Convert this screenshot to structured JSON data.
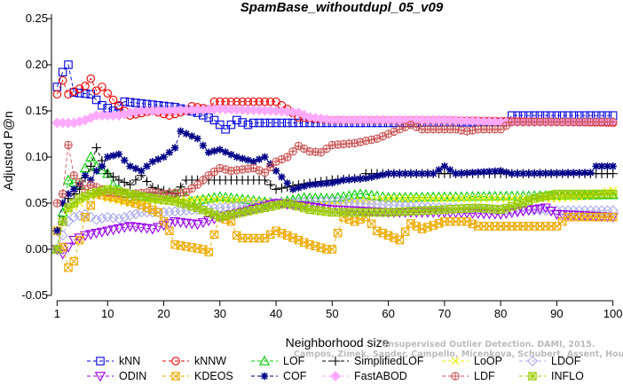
{
  "chart_data": {
    "type": "line",
    "title": "SpamBase_withoutdupl_05_v09",
    "xlabel": "Neighborhood size",
    "ylabel": "Adjusted P@n",
    "xlim": [
      0,
      101
    ],
    "ylim": [
      -0.05,
      0.25
    ],
    "x_ticks": [
      1,
      10,
      20,
      30,
      40,
      50,
      60,
      70,
      80,
      90,
      100
    ],
    "y_ticks": [
      -0.05,
      0.0,
      0.05,
      0.1,
      0.15,
      0.2,
      0.25
    ],
    "y_tick_labels": [
      "-0.05",
      "0.00",
      "0.05",
      "0.10",
      "0.15",
      "0.20",
      "0.25"
    ],
    "grid": false,
    "legend_position": "bottom",
    "watermark": "Campos, Zimek, Sander, Campello, Micenkova, Schubert, Assent, Houle",
    "watermark_overlay": "Unsupervised Outlier Detection. DAMI, 2015.",
    "series": [
      {
        "name": "kNN",
        "color": "#0000dd",
        "marker": "square",
        "dash": "4,3",
        "knots": [
          [
            1,
            0.176
          ],
          [
            2,
            0.192
          ],
          [
            3,
            0.2
          ],
          [
            4,
            0.17
          ],
          [
            7,
            0.168
          ],
          [
            9,
            0.156
          ],
          [
            11,
            0.15
          ],
          [
            13,
            0.16
          ],
          [
            22,
            0.154
          ],
          [
            26,
            0.148
          ],
          [
            29,
            0.14
          ],
          [
            31,
            0.13
          ],
          [
            33,
            0.14
          ],
          [
            35,
            0.135
          ],
          [
            36,
            0.137
          ],
          [
            60,
            0.137
          ],
          [
            81,
            0.138
          ],
          [
            82,
            0.145
          ],
          [
            100,
            0.145
          ]
        ]
      },
      {
        "name": "kNNW",
        "color": "#ee0000",
        "marker": "circle",
        "dash": "4,3",
        "knots": [
          [
            1,
            0.168
          ],
          [
            2,
            0.183
          ],
          [
            3,
            0.168
          ],
          [
            6,
            0.177
          ],
          [
            7,
            0.185
          ],
          [
            8,
            0.172
          ],
          [
            9,
            0.176
          ],
          [
            11,
            0.162
          ],
          [
            13,
            0.15
          ],
          [
            14,
            0.145
          ],
          [
            18,
            0.15
          ],
          [
            21,
            0.145
          ],
          [
            24,
            0.15
          ],
          [
            25,
            0.155
          ],
          [
            28,
            0.152
          ],
          [
            29,
            0.16
          ],
          [
            40,
            0.16
          ],
          [
            42,
            0.152
          ],
          [
            44,
            0.143
          ],
          [
            50,
            0.14
          ],
          [
            70,
            0.14
          ],
          [
            100,
            0.137
          ]
        ]
      },
      {
        "name": "LOF",
        "color": "#00cc00",
        "marker": "triangle-up",
        "dash": "4,3",
        "knots": [
          [
            1,
            0.0
          ],
          [
            2,
            0.04
          ],
          [
            3,
            0.075
          ],
          [
            5,
            0.07
          ],
          [
            6,
            0.088
          ],
          [
            7,
            0.1
          ],
          [
            8,
            0.09
          ],
          [
            10,
            0.082
          ],
          [
            11,
            0.07
          ],
          [
            13,
            0.06
          ],
          [
            14,
            0.057
          ],
          [
            20,
            0.058
          ],
          [
            23,
            0.062
          ],
          [
            25,
            0.052
          ],
          [
            30,
            0.057
          ],
          [
            40,
            0.05
          ],
          [
            45,
            0.056
          ],
          [
            50,
            0.055
          ],
          [
            55,
            0.06
          ],
          [
            60,
            0.056
          ],
          [
            100,
            0.059
          ]
        ]
      },
      {
        "name": "SimplifiedLOF",
        "color": "#000000",
        "marker": "plus",
        "dash": "4,3",
        "knots": [
          [
            1,
            0.02
          ],
          [
            2,
            0.03
          ],
          [
            3,
            0.055
          ],
          [
            5,
            0.065
          ],
          [
            7,
            0.09
          ],
          [
            8,
            0.11
          ],
          [
            10,
            0.082
          ],
          [
            12,
            0.075
          ],
          [
            14,
            0.07
          ],
          [
            16,
            0.08
          ],
          [
            18,
            0.067
          ],
          [
            22,
            0.06
          ],
          [
            24,
            0.075
          ],
          [
            38,
            0.075
          ],
          [
            40,
            0.065
          ],
          [
            44,
            0.07
          ],
          [
            50,
            0.075
          ],
          [
            55,
            0.077
          ],
          [
            56,
            0.082
          ],
          [
            100,
            0.082
          ]
        ]
      },
      {
        "name": "LoOP",
        "color": "#eeee00",
        "marker": "x",
        "dash": "4,3",
        "knots": [
          [
            1,
            0.0
          ],
          [
            2,
            0.03
          ],
          [
            3,
            0.042
          ],
          [
            5,
            0.05
          ],
          [
            8,
            0.062
          ],
          [
            10,
            0.055
          ],
          [
            14,
            0.05
          ],
          [
            20,
            0.053
          ],
          [
            30,
            0.054
          ],
          [
            40,
            0.05
          ],
          [
            50,
            0.05
          ],
          [
            60,
            0.055
          ],
          [
            70,
            0.055
          ],
          [
            90,
            0.055
          ],
          [
            96,
            0.058
          ],
          [
            100,
            0.064
          ]
        ]
      },
      {
        "name": "LDOF",
        "color": "#aaaaee",
        "marker": "diamond",
        "dash": "4,3",
        "knots": [
          [
            1,
            0.0
          ],
          [
            2,
            0.015
          ],
          [
            3,
            0.03
          ],
          [
            4,
            0.035
          ],
          [
            6,
            0.038
          ],
          [
            8,
            0.032
          ],
          [
            10,
            0.035
          ],
          [
            12,
            0.033
          ],
          [
            16,
            0.04
          ],
          [
            20,
            0.04
          ],
          [
            30,
            0.045
          ],
          [
            40,
            0.05
          ],
          [
            50,
            0.052
          ],
          [
            60,
            0.048
          ],
          [
            70,
            0.045
          ],
          [
            80,
            0.043
          ],
          [
            90,
            0.042
          ],
          [
            100,
            0.042
          ]
        ]
      },
      {
        "name": "ODIN",
        "color": "#9900ee",
        "marker": "triangle-down",
        "dash": "4,3",
        "knots": [
          [
            1,
            0.0
          ],
          [
            2,
            -0.005
          ],
          [
            4,
            0.01
          ],
          [
            6,
            0.015
          ],
          [
            10,
            0.02
          ],
          [
            14,
            0.025
          ],
          [
            18,
            0.022
          ],
          [
            22,
            0.03
          ],
          [
            26,
            0.027
          ],
          [
            30,
            0.035
          ],
          [
            35,
            0.042
          ],
          [
            40,
            0.05
          ],
          [
            45,
            0.047
          ],
          [
            50,
            0.043
          ],
          [
            60,
            0.04
          ],
          [
            70,
            0.04
          ],
          [
            80,
            0.038
          ],
          [
            88,
            0.045
          ],
          [
            90,
            0.038
          ],
          [
            100,
            0.035
          ]
        ]
      },
      {
        "name": "KDEOS",
        "color": "#eeaa00",
        "marker": "square-x",
        "dash": "4,3",
        "knots": [
          [
            1,
            0.02
          ],
          [
            2,
            0.002
          ],
          [
            3,
            -0.02
          ],
          [
            4,
            -0.013
          ],
          [
            5,
            0.01
          ],
          [
            6,
            0.035
          ],
          [
            8,
            0.06
          ],
          [
            12,
            0.055
          ],
          [
            16,
            0.048
          ],
          [
            19,
            0.04
          ],
          [
            21,
            0.02
          ],
          [
            22,
            0.005
          ],
          [
            27,
            0.0
          ],
          [
            28,
            -0.003
          ],
          [
            30,
            0.035
          ],
          [
            32,
            0.03
          ],
          [
            33,
            0.015
          ],
          [
            34,
            0.012
          ],
          [
            38,
            0.012
          ],
          [
            40,
            0.02
          ],
          [
            44,
            0.01
          ],
          [
            46,
            0.005
          ],
          [
            49,
            0.0
          ],
          [
            50,
            0.0
          ],
          [
            52,
            0.035
          ],
          [
            54,
            0.03
          ],
          [
            56,
            0.035
          ],
          [
            58,
            0.02
          ],
          [
            60,
            0.015
          ],
          [
            62,
            0.01
          ],
          [
            64,
            0.028
          ],
          [
            66,
            0.022
          ],
          [
            70,
            0.03
          ],
          [
            74,
            0.03
          ],
          [
            76,
            0.025
          ],
          [
            90,
            0.025
          ],
          [
            92,
            0.035
          ],
          [
            100,
            0.035
          ]
        ]
      },
      {
        "name": "COF",
        "color": "#000088",
        "marker": "asterisk",
        "dash": "4,3",
        "knots": [
          [
            1,
            0.02
          ],
          [
            2,
            0.05
          ],
          [
            3,
            0.06
          ],
          [
            4,
            0.065
          ],
          [
            5,
            0.07
          ],
          [
            6,
            0.08
          ],
          [
            7,
            0.075
          ],
          [
            8,
            0.085
          ],
          [
            9,
            0.09
          ],
          [
            10,
            0.1
          ],
          [
            12,
            0.103
          ],
          [
            14,
            0.09
          ],
          [
            16,
            0.085
          ],
          [
            18,
            0.095
          ],
          [
            20,
            0.1
          ],
          [
            22,
            0.11
          ],
          [
            23,
            0.128
          ],
          [
            26,
            0.12
          ],
          [
            28,
            0.105
          ],
          [
            30,
            0.108
          ],
          [
            33,
            0.1
          ],
          [
            36,
            0.095
          ],
          [
            38,
            0.1
          ],
          [
            40,
            0.085
          ],
          [
            43,
            0.065
          ],
          [
            46,
            0.07
          ],
          [
            50,
            0.072
          ],
          [
            52,
            0.075
          ],
          [
            56,
            0.077
          ],
          [
            60,
            0.082
          ],
          [
            68,
            0.082
          ],
          [
            70,
            0.09
          ],
          [
            72,
            0.082
          ],
          [
            80,
            0.085
          ],
          [
            82,
            0.082
          ],
          [
            96,
            0.083
          ],
          [
            97,
            0.09
          ],
          [
            100,
            0.09
          ]
        ]
      },
      {
        "name": "FastABOD",
        "color": "#ffaaff",
        "marker": "diamond-filled",
        "dash": "4,3",
        "knots": [
          [
            1,
            0.137
          ],
          [
            2,
            0.137
          ],
          [
            4,
            0.137
          ],
          [
            6,
            0.14
          ],
          [
            8,
            0.145
          ],
          [
            12,
            0.145
          ],
          [
            14,
            0.148
          ],
          [
            16,
            0.15
          ],
          [
            20,
            0.15
          ],
          [
            30,
            0.152
          ],
          [
            40,
            0.15
          ],
          [
            44,
            0.148
          ],
          [
            46,
            0.143
          ],
          [
            50,
            0.14
          ],
          [
            60,
            0.14
          ],
          [
            70,
            0.14
          ],
          [
            80,
            0.138
          ],
          [
            100,
            0.138
          ]
        ]
      },
      {
        "name": "LDF",
        "color": "#cc5555",
        "marker": "circle-plus",
        "dash": "4,3",
        "knots": [
          [
            1,
            0.05
          ],
          [
            2,
            0.06
          ],
          [
            3,
            0.113
          ],
          [
            4,
            0.08
          ],
          [
            6,
            0.065
          ],
          [
            7,
            0.07
          ],
          [
            10,
            0.062
          ],
          [
            14,
            0.06
          ],
          [
            18,
            0.062
          ],
          [
            20,
            0.06
          ],
          [
            24,
            0.062
          ],
          [
            26,
            0.07
          ],
          [
            28,
            0.08
          ],
          [
            30,
            0.088
          ],
          [
            32,
            0.085
          ],
          [
            36,
            0.088
          ],
          [
            38,
            0.083
          ],
          [
            40,
            0.095
          ],
          [
            42,
            0.1
          ],
          [
            44,
            0.112
          ],
          [
            46,
            0.106
          ],
          [
            48,
            0.105
          ],
          [
            50,
            0.113
          ],
          [
            54,
            0.115
          ],
          [
            58,
            0.12
          ],
          [
            60,
            0.125
          ],
          [
            62,
            0.13
          ],
          [
            64,
            0.135
          ],
          [
            66,
            0.13
          ],
          [
            70,
            0.13
          ],
          [
            72,
            0.13
          ],
          [
            74,
            0.128
          ],
          [
            76,
            0.13
          ],
          [
            78,
            0.13
          ],
          [
            80,
            0.13
          ],
          [
            82,
            0.138
          ],
          [
            100,
            0.138
          ]
        ]
      },
      {
        "name": "INFLO",
        "color": "#99cc00",
        "marker": "star",
        "dash": "4,3",
        "knots": [
          [
            1,
            0.0
          ],
          [
            2,
            0.03
          ],
          [
            3,
            0.045
          ],
          [
            5,
            0.055
          ],
          [
            7,
            0.06
          ],
          [
            10,
            0.065
          ],
          [
            14,
            0.06
          ],
          [
            18,
            0.055
          ],
          [
            22,
            0.052
          ],
          [
            26,
            0.045
          ],
          [
            30,
            0.035
          ],
          [
            34,
            0.04
          ],
          [
            38,
            0.045
          ],
          [
            42,
            0.05
          ],
          [
            46,
            0.043
          ],
          [
            50,
            0.04
          ],
          [
            56,
            0.04
          ],
          [
            60,
            0.04
          ],
          [
            70,
            0.043
          ],
          [
            76,
            0.045
          ],
          [
            80,
            0.043
          ],
          [
            84,
            0.05
          ],
          [
            86,
            0.055
          ],
          [
            90,
            0.06
          ],
          [
            100,
            0.06
          ]
        ]
      }
    ]
  }
}
